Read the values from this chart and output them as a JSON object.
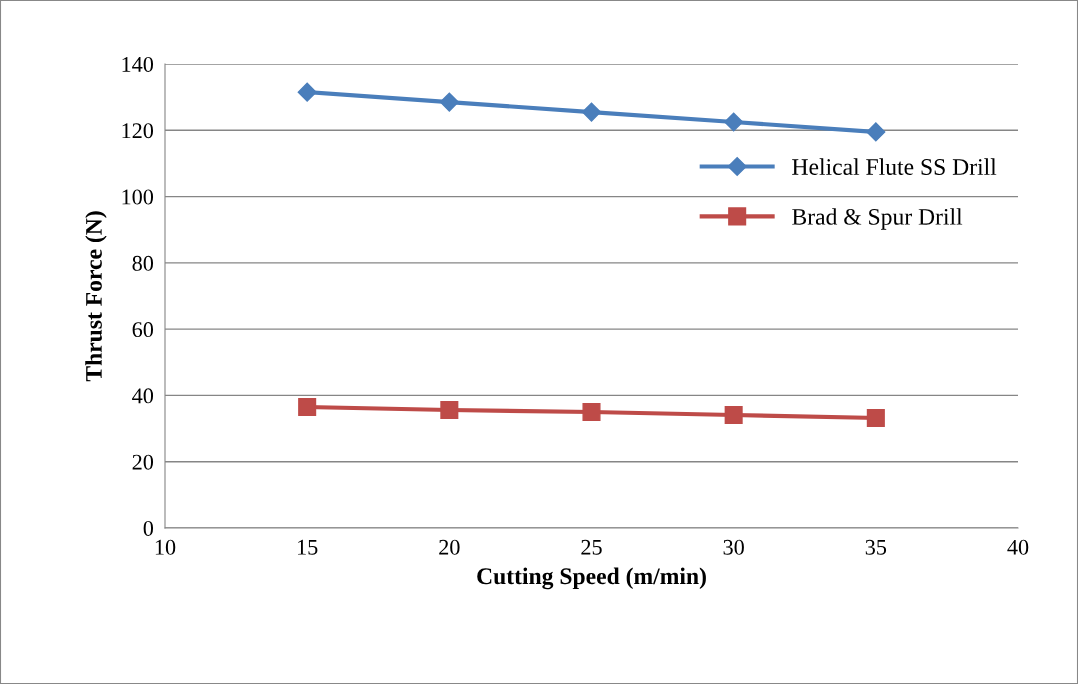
{
  "chart_data": {
    "type": "line",
    "xlabel": "Cutting Speed (m/min)",
    "ylabel": "Thrust Force (N)",
    "x": [
      15,
      20,
      25,
      30,
      35
    ],
    "series": [
      {
        "name": "Helical Flute SS Drill",
        "color": "#4a7ebb",
        "marker": "diamond",
        "values": [
          131.5,
          128.5,
          125.5,
          122.5,
          119.5
        ]
      },
      {
        "name": "Brad & Spur Drill",
        "color": "#be4b48",
        "marker": "square",
        "values": [
          36.5,
          35.6,
          35.0,
          34.1,
          33.2
        ]
      }
    ],
    "xlim": [
      10,
      40
    ],
    "xticks": [
      10,
      15,
      20,
      25,
      30,
      35,
      40
    ],
    "ylim": [
      0,
      140
    ],
    "yticks": [
      0,
      20,
      40,
      60,
      80,
      100,
      120,
      140
    ],
    "grid": "y",
    "legend": "right",
    "line_style": "solid"
  }
}
